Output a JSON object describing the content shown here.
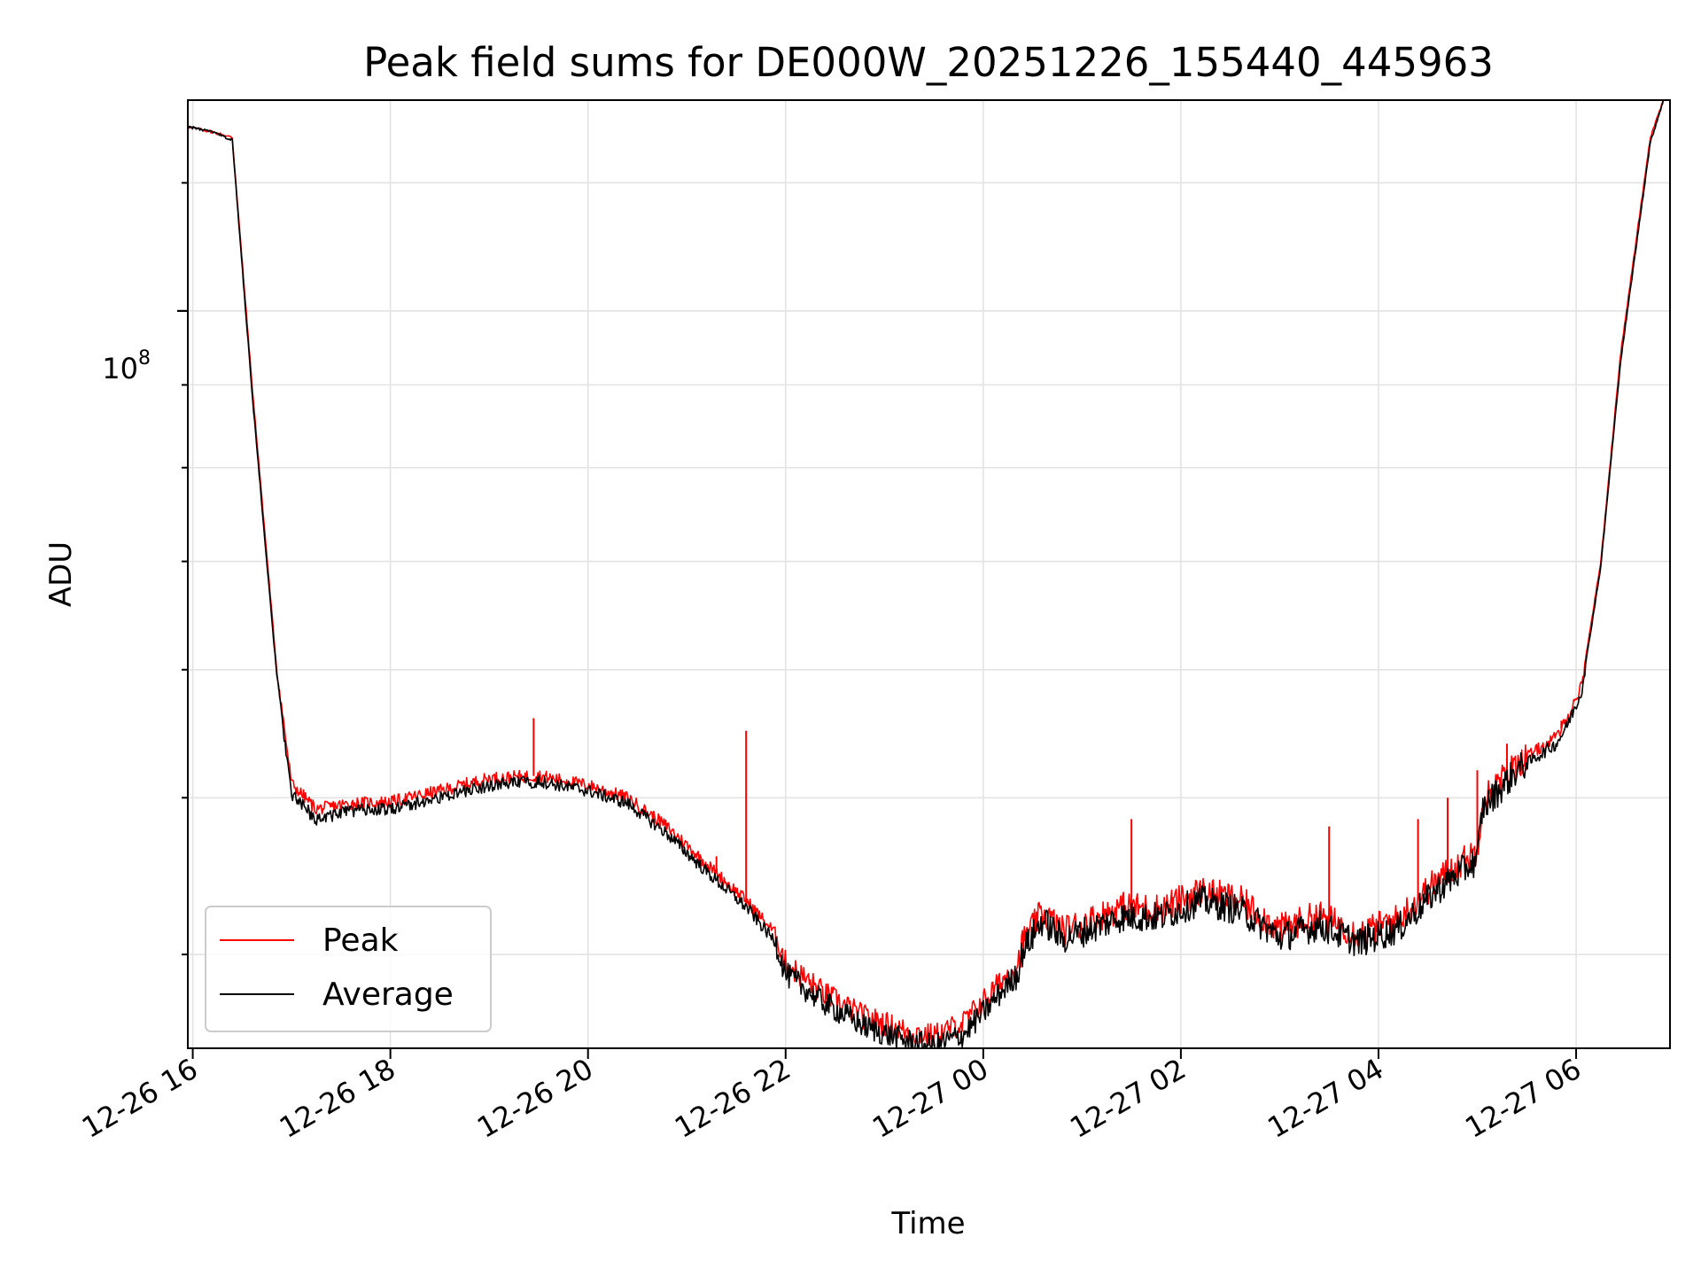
{
  "chart_data": {
    "type": "line",
    "title": "Peak field sums for DE000W_20251226_155440_445963",
    "xlabel": "Time",
    "ylabel": "ADU",
    "yscale": "log",
    "ytick_base": "10",
    "ytick_exp": "8",
    "ytick_value": 100000000,
    "ylim": [
      35000000,
      135000000
    ],
    "xlim_hours": [
      15.95,
      30.95
    ],
    "grid": true,
    "legend_position": "lower-left",
    "x_ticks": [
      {
        "label": "12-26 16",
        "hour": 16
      },
      {
        "label": "12-26 18",
        "hour": 18
      },
      {
        "label": "12-26 20",
        "hour": 20
      },
      {
        "label": "12-26 22",
        "hour": 22
      },
      {
        "label": "12-27 00",
        "hour": 24
      },
      {
        "label": "12-27 02",
        "hour": 26
      },
      {
        "label": "12-27 04",
        "hour": 28
      },
      {
        "label": "12-27 06",
        "hour": 30
      }
    ],
    "x_hours": [
      15.95,
      16.2,
      16.4,
      16.6,
      16.85,
      17.0,
      17.25,
      17.6,
      18.0,
      18.5,
      19.0,
      19.5,
      20.0,
      20.4,
      20.8,
      21.2,
      21.6,
      21.9,
      22.0,
      22.4,
      22.8,
      23.2,
      23.5,
      23.8,
      24.1,
      24.35,
      24.4,
      24.6,
      24.8,
      25.0,
      25.4,
      25.8,
      26.2,
      26.6,
      27.0,
      27.4,
      27.8,
      28.2,
      28.6,
      29.0,
      29.05,
      29.4,
      29.8,
      29.9,
      30.05,
      30.25,
      30.45,
      30.75,
      30.9
    ],
    "series": [
      {
        "name": "Peak",
        "color": "#ff0000",
        "values": [
          130000000.0,
          129000000.0,
          128000000.0,
          90000000.0,
          60000000.0,
          51000000.0,
          49200000.0,
          49600000.0,
          49700000.0,
          50500000.0,
          51400000.0,
          51600000.0,
          50900000.0,
          50000000.0,
          48000000.0,
          45500000.0,
          43200000.0,
          41200000.0,
          39500000.0,
          37800000.0,
          36600000.0,
          35900000.0,
          35600000.0,
          36300000.0,
          38000000.0,
          39500000.0,
          40700000.0,
          42500000.0,
          41400000.0,
          41800000.0,
          42800000.0,
          42700000.0,
          43800000.0,
          43200000.0,
          41500000.0,
          42300000.0,
          41200000.0,
          42100000.0,
          44500000.0,
          46400000.0,
          49800000.0,
          52500000.0,
          54500000.0,
          55800000.0,
          58500000.0,
          70000000.0,
          94000000.0,
          128000000.0,
          136000000.0
        ],
        "spikes": [
          {
            "hour": 19.45,
            "value": 56000000.0
          },
          {
            "hour": 21.3,
            "value": 46000000.0
          },
          {
            "hour": 21.6,
            "value": 55000000.0
          },
          {
            "hour": 25.5,
            "value": 48500000.0
          },
          {
            "hour": 27.5,
            "value": 48000000.0
          },
          {
            "hour": 28.4,
            "value": 48500000.0
          },
          {
            "hour": 28.7,
            "value": 50000000.0
          },
          {
            "hour": 29.0,
            "value": 52000000.0
          },
          {
            "hour": 29.3,
            "value": 54000000.0
          },
          {
            "hour": 29.85,
            "value": 55800000.0
          }
        ]
      },
      {
        "name": "Average",
        "color": "#000000",
        "values": [
          130000000.0,
          129000000.0,
          127500000.0,
          89000000.0,
          59500000.0,
          50200000.0,
          48500000.0,
          49100000.0,
          49200000.0,
          50000000.0,
          50900000.0,
          51200000.0,
          50500000.0,
          49600000.0,
          47500000.0,
          45000000.0,
          42800000.0,
          40700000.0,
          38900000.0,
          37300000.0,
          36100000.0,
          35400000.0,
          35100000.0,
          35700000.0,
          37400000.0,
          39000000.0,
          40200000.0,
          42000000.0,
          40900000.0,
          41300000.0,
          42200000.0,
          42200000.0,
          43200000.0,
          42600000.0,
          41000000.0,
          41700000.0,
          40700000.0,
          41500000.0,
          43900000.0,
          45800000.0,
          49200000.0,
          52000000.0,
          54000000.0,
          55300000.0,
          58000000.0,
          69500000.0,
          93000000.0,
          127000000.0,
          136000000.0
        ]
      }
    ]
  }
}
